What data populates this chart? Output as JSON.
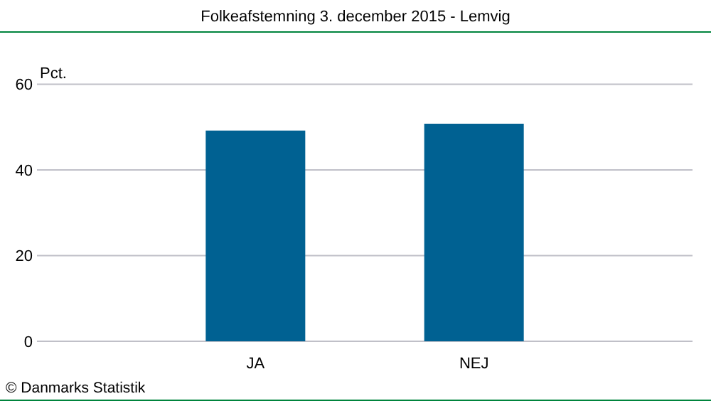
{
  "chart_data": {
    "type": "bar",
    "title": "Folkeafstemning 3. december 2015 - Lemvig",
    "ylabel": "Pct.",
    "categories": [
      "JA",
      "NEJ"
    ],
    "values": [
      49.2,
      50.8
    ],
    "color": "#006192",
    "ylim": [
      0,
      60
    ],
    "yticks": [
      0,
      20,
      40,
      60
    ],
    "grid": "y",
    "annotations": [
      "© Danmarks Statistik"
    ]
  }
}
